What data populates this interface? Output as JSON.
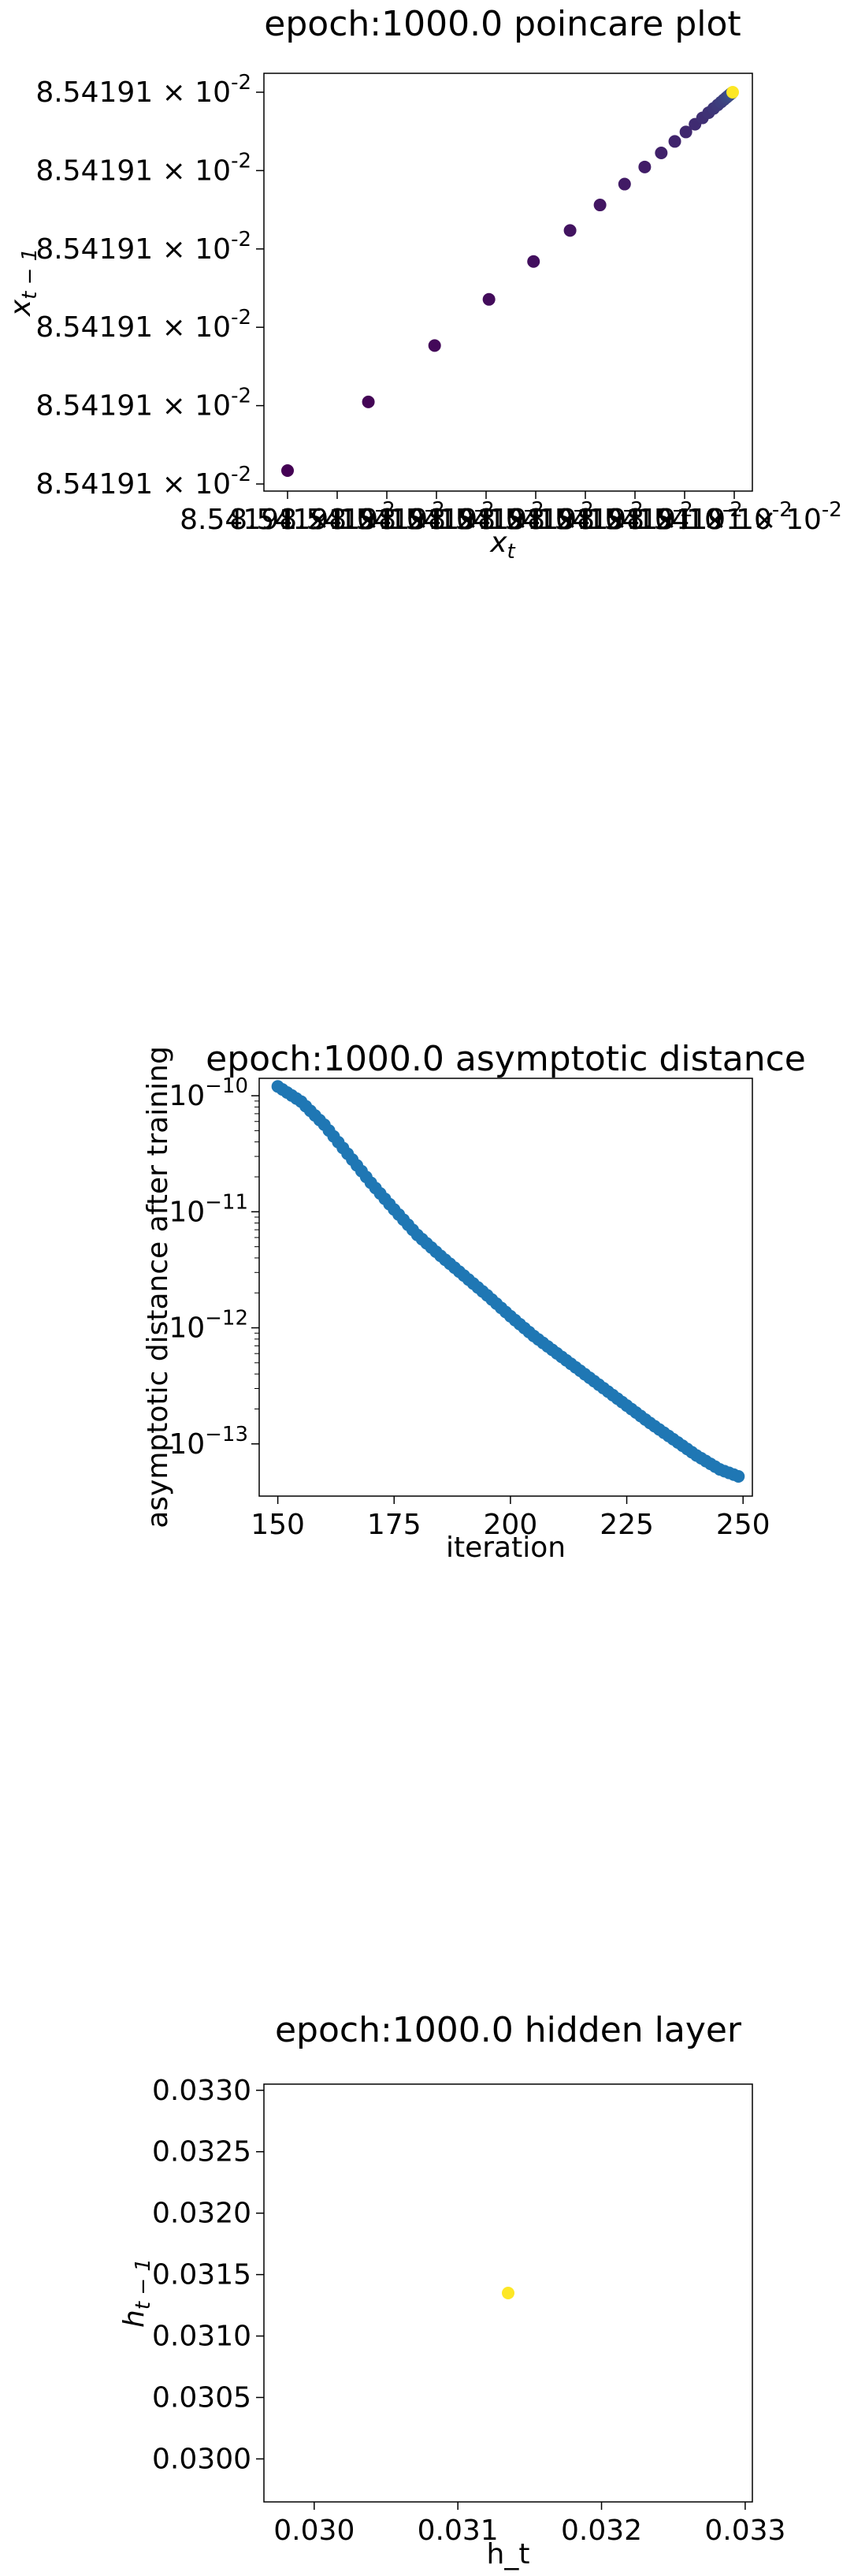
{
  "chart_data": [
    {
      "type": "scatter",
      "title": "epoch:1000.0 poincare plot",
      "xlabel": "x_t",
      "ylabel": "x_t-1",
      "tick_label_y": "8.54191 × 10^-2",
      "tick_label_x": "8.54191 × 10^-2",
      "y_tick_count": 6,
      "x_tick_count": 10,
      "point_count": 25,
      "colormap": "viridis",
      "colors": {
        "start": "#440154",
        "mid": "#3b528b",
        "end": "#fde725"
      },
      "grid": false
    },
    {
      "type": "scatter",
      "title": "epoch:1000.0 asymptotic distance",
      "xlabel": "iteration",
      "ylabel": "asymptotic distance after training",
      "yscale": "log",
      "xlim": [
        146,
        252
      ],
      "ylim_log10": [
        -13.45,
        -9.85
      ],
      "xticks": [
        150,
        175,
        200,
        225,
        250
      ],
      "yticks_log10": [
        -10,
        -11,
        -12,
        -13
      ],
      "x_start": 150,
      "x_end": 249,
      "series": [
        {
          "color": "#1f77b4",
          "anchors_x": [
            150,
            155,
            160,
            165,
            170,
            175,
            180,
            185,
            190,
            195,
            200,
            205,
            210,
            215,
            220,
            225,
            230,
            235,
            240,
            245,
            249
          ],
          "anchors_log10_y": [
            -9.92,
            -10.05,
            -10.25,
            -10.5,
            -10.75,
            -10.98,
            -11.2,
            -11.38,
            -11.55,
            -11.72,
            -11.9,
            -12.07,
            -12.22,
            -12.37,
            -12.52,
            -12.67,
            -12.82,
            -12.96,
            -13.1,
            -13.22,
            -13.28
          ]
        }
      ],
      "grid": false
    },
    {
      "type": "scatter",
      "title": "epoch:1000.0 hidden layer",
      "xlabel": "h_t",
      "ylabel": "h_t-1",
      "xlim": [
        0.02965,
        0.03305
      ],
      "ylim": [
        0.02965,
        0.03305
      ],
      "xticks": [
        "0.030",
        "0.031",
        "0.032",
        "0.033"
      ],
      "yticks": [
        "0.0330",
        "0.0325",
        "0.0320",
        "0.0315",
        "0.0310",
        "0.0305",
        "0.0300"
      ],
      "points": [
        {
          "x": 0.03135,
          "y": 0.03135,
          "color": "#fde725"
        }
      ],
      "grid": false
    }
  ]
}
